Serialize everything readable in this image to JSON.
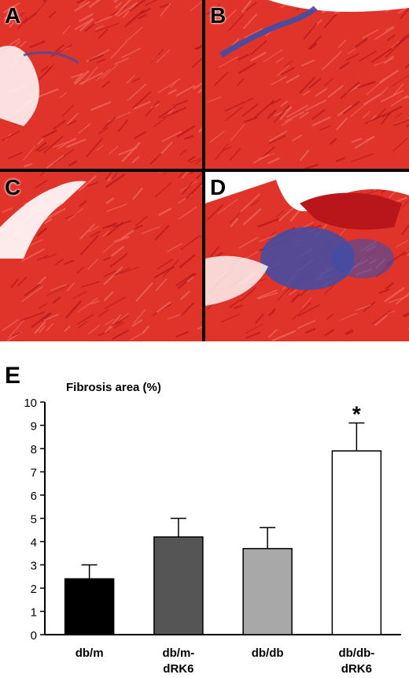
{
  "panels": [
    {
      "label": "A",
      "fibrosis": "low"
    },
    {
      "label": "B",
      "fibrosis": "moderate"
    },
    {
      "label": "C",
      "fibrosis": "low"
    },
    {
      "label": "D",
      "fibrosis": "high"
    }
  ],
  "colors": {
    "tissue": "#e0342a",
    "tissue_dark": "#b8161a",
    "collagen": "#3d4fa8",
    "background": "#ffffff"
  },
  "chart_data": {
    "type": "bar",
    "panel_label": "E",
    "title": "",
    "ylabel": "Fibrosis area (%)",
    "xlabel": "",
    "ylim": [
      0,
      10
    ],
    "yticks": [
      0,
      1,
      2,
      3,
      4,
      5,
      6,
      7,
      8,
      9,
      10
    ],
    "categories": [
      [
        "db/m"
      ],
      [
        "db/m-",
        "dRK6"
      ],
      [
        "db/db"
      ],
      [
        "db/db-",
        "dRK6"
      ]
    ],
    "values": [
      2.4,
      4.2,
      3.7,
      7.9
    ],
    "errors": [
      0.6,
      0.8,
      0.9,
      1.2
    ],
    "bar_colors": [
      "#000000",
      "#555555",
      "#a8a8a8",
      "#ffffff"
    ],
    "annotations": [
      {
        "category_index": 3,
        "text": "*"
      }
    ]
  }
}
